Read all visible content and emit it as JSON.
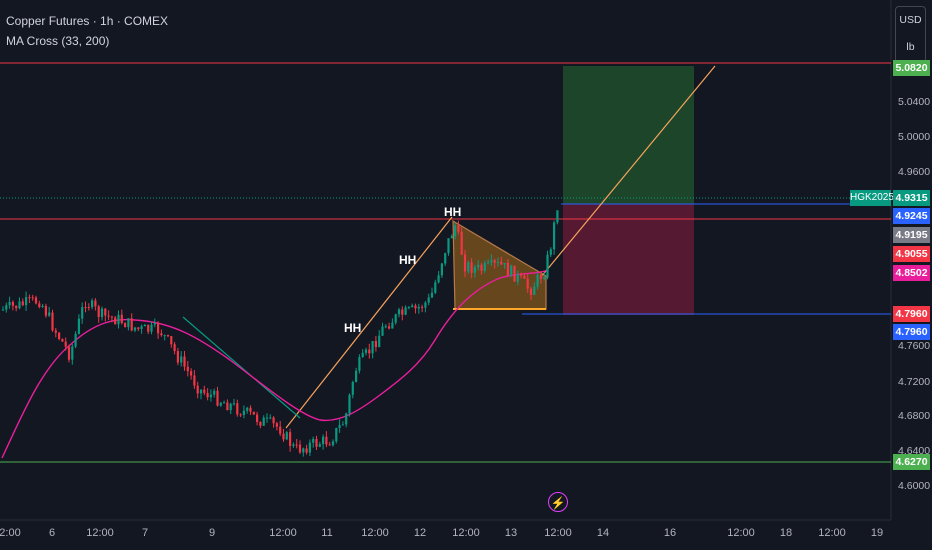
{
  "legend": {
    "title": "Copper Futures · 1h · COMEX",
    "indicator": "MA Cross (33, 200)"
  },
  "unit_box": {
    "currency": "USD",
    "unit": "lb"
  },
  "symbol_tag": "HGK2025",
  "price_axis_ticks": [
    "5.0400",
    "5.0000",
    "4.9600",
    "4.7600",
    "4.7200",
    "4.6800",
    "4.6400",
    "4.6000"
  ],
  "price_labels": [
    {
      "text": "5.0820",
      "color": "#4caf50",
      "kind": "top"
    },
    {
      "text": "4.9315",
      "color": "#089981"
    },
    {
      "text": "4.9245",
      "color": "#2962ff"
    },
    {
      "text": "4.9195",
      "color": "#787b86"
    },
    {
      "text": "4.9055",
      "color": "#f23645"
    },
    {
      "text": "4.8502",
      "color": "#e91e9c"
    },
    {
      "text": "4.7960",
      "color": "#f23645"
    },
    {
      "text": "4.7960",
      "color": "#2962ff"
    },
    {
      "text": "4.6270",
      "color": "#4caf50"
    }
  ],
  "time_axis": [
    "2:00",
    "6",
    "12:00",
    "7",
    "9",
    "12:00",
    "11",
    "12:00",
    "12",
    "12:00",
    "13",
    "12:00",
    "14",
    "16",
    "12:00",
    "18",
    "12:00",
    "19"
  ],
  "annotations": [
    "HH",
    "HH",
    "HH"
  ],
  "colors": {
    "up": "#089981",
    "down": "#f23645",
    "ma_fast": "#e91e9c",
    "profit": "#1e4d2b",
    "loss": "#5d1a33",
    "trend": "#f7a35c"
  },
  "icons": {
    "flash": "lightning-icon"
  }
}
